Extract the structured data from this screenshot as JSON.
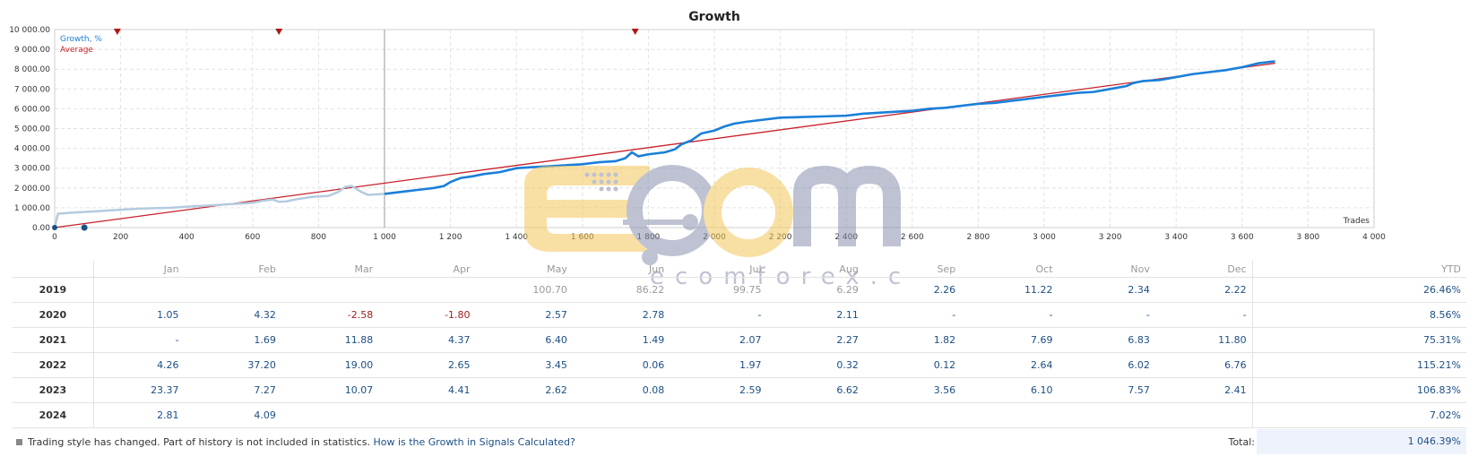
{
  "chart_data": {
    "type": "line",
    "title": "Growth",
    "xlabel": "Trades",
    "ylabel": "",
    "xlim": [
      0,
      4000
    ],
    "ylim": [
      0,
      10000
    ],
    "x_ticks": [
      "0",
      "200",
      "400",
      "600",
      "800",
      "1 000",
      "1 200",
      "1 400",
      "1 600",
      "1 800",
      "2 000",
      "2 200",
      "2 400",
      "2 600",
      "2 800",
      "3 000",
      "3 200",
      "3 400",
      "3 600",
      "3 800",
      "4 000"
    ],
    "y_ticks": [
      "0.00",
      "1 000.00",
      "2 000.00",
      "3 000.00",
      "4 000.00",
      "5 000.00",
      "6 000.00",
      "7 000.00",
      "8 000.00",
      "9 000.00",
      "10 000.00"
    ],
    "grid": true,
    "legend_position": "top-left",
    "series": [
      {
        "name": "Growth, %",
        "color": "#1a7fd9",
        "history_color": "#b3cbe0",
        "history_until": 1000,
        "points": [
          [
            0,
            0
          ],
          [
            10,
            700
          ],
          [
            50,
            750
          ],
          [
            100,
            800
          ],
          [
            150,
            850
          ],
          [
            200,
            900
          ],
          [
            250,
            950
          ],
          [
            300,
            980
          ],
          [
            350,
            1000
          ],
          [
            400,
            1050
          ],
          [
            450,
            1100
          ],
          [
            500,
            1150
          ],
          [
            550,
            1200
          ],
          [
            600,
            1250
          ],
          [
            630,
            1350
          ],
          [
            660,
            1420
          ],
          [
            680,
            1300
          ],
          [
            700,
            1320
          ],
          [
            740,
            1450
          ],
          [
            780,
            1550
          ],
          [
            830,
            1600
          ],
          [
            860,
            1800
          ],
          [
            880,
            2050
          ],
          [
            900,
            2100
          ],
          [
            930,
            1800
          ],
          [
            950,
            1650
          ],
          [
            1000,
            1700
          ],
          [
            1050,
            1800
          ],
          [
            1100,
            1900
          ],
          [
            1150,
            2000
          ],
          [
            1180,
            2100
          ],
          [
            1200,
            2300
          ],
          [
            1230,
            2500
          ],
          [
            1270,
            2600
          ],
          [
            1300,
            2700
          ],
          [
            1350,
            2800
          ],
          [
            1400,
            3000
          ],
          [
            1450,
            3050
          ],
          [
            1500,
            3100
          ],
          [
            1550,
            3150
          ],
          [
            1600,
            3200
          ],
          [
            1650,
            3300
          ],
          [
            1700,
            3350
          ],
          [
            1730,
            3500
          ],
          [
            1750,
            3800
          ],
          [
            1770,
            3600
          ],
          [
            1800,
            3700
          ],
          [
            1850,
            3800
          ],
          [
            1880,
            3950
          ],
          [
            1900,
            4200
          ],
          [
            1930,
            4400
          ],
          [
            1960,
            4750
          ],
          [
            2000,
            4900
          ],
          [
            2030,
            5100
          ],
          [
            2060,
            5250
          ],
          [
            2100,
            5350
          ],
          [
            2200,
            5550
          ],
          [
            2300,
            5600
          ],
          [
            2400,
            5650
          ],
          [
            2450,
            5750
          ],
          [
            2500,
            5800
          ],
          [
            2550,
            5850
          ],
          [
            2600,
            5900
          ],
          [
            2650,
            6000
          ],
          [
            2700,
            6050
          ],
          [
            2750,
            6150
          ],
          [
            2800,
            6250
          ],
          [
            2850,
            6300
          ],
          [
            2900,
            6400
          ],
          [
            2950,
            6500
          ],
          [
            3000,
            6600
          ],
          [
            3050,
            6700
          ],
          [
            3100,
            6800
          ],
          [
            3150,
            6850
          ],
          [
            3200,
            7000
          ],
          [
            3250,
            7150
          ],
          [
            3270,
            7300
          ],
          [
            3300,
            7400
          ],
          [
            3350,
            7450
          ],
          [
            3400,
            7600
          ],
          [
            3450,
            7750
          ],
          [
            3500,
            7850
          ],
          [
            3550,
            7950
          ],
          [
            3600,
            8100
          ],
          [
            3650,
            8300
          ],
          [
            3700,
            8400
          ]
        ]
      },
      {
        "name": "Average",
        "color": "#c8202a",
        "points": [
          [
            0,
            0
          ],
          [
            3700,
            8300
          ]
        ]
      }
    ],
    "markers": [
      [
        190,
        10000
      ],
      [
        680,
        10000
      ],
      [
        1760,
        10000
      ]
    ],
    "start_marker": [
      90,
      0
    ]
  },
  "table": {
    "headers": [
      "",
      "Jan",
      "Feb",
      "Mar",
      "Apr",
      "May",
      "Jun",
      "Jul",
      "Aug",
      "Sep",
      "Oct",
      "Nov",
      "Dec",
      "YTD"
    ],
    "rows": [
      {
        "year": "2019",
        "values": [
          "",
          "",
          "",
          "",
          "100.70",
          "86.22",
          "99.75",
          "6.29",
          "2.26",
          "11.22",
          "2.34",
          "2.22"
        ],
        "ytd": "26.46%"
      },
      {
        "year": "2020",
        "values": [
          "1.05",
          "4.32",
          "-2.58",
          "-1.80",
          "2.57",
          "2.78",
          "-",
          "2.11",
          "-",
          "-",
          "-",
          "-"
        ],
        "ytd": "8.56%"
      },
      {
        "year": "2021",
        "values": [
          "-",
          "1.69",
          "11.88",
          "4.37",
          "6.40",
          "1.49",
          "2.07",
          "2.27",
          "1.82",
          "7.69",
          "6.83",
          "11.80"
        ],
        "ytd": "75.31%"
      },
      {
        "year": "2022",
        "values": [
          "4.26",
          "37.20",
          "19.00",
          "2.65",
          "3.45",
          "0.06",
          "1.97",
          "0.32",
          "0.12",
          "2.64",
          "6.02",
          "6.76"
        ],
        "ytd": "115.21%"
      },
      {
        "year": "2023",
        "values": [
          "23.37",
          "7.27",
          "10.07",
          "4.41",
          "2.62",
          "0.08",
          "2.59",
          "6.62",
          "3.56",
          "6.10",
          "7.57",
          "2.41"
        ],
        "ytd": "106.83%"
      },
      {
        "year": "2024",
        "values": [
          "2.81",
          "4.09",
          "",
          "",
          "",
          "",
          "",
          "",
          "",
          "",
          "",
          ""
        ],
        "ytd": "7.02%"
      }
    ]
  },
  "footer": {
    "note": "Trading style has changed. Part of history is not included in statistics.",
    "link": "How is the Growth in Signals Calculated?",
    "total_label": "Total:",
    "total_value": "1 046.39%"
  },
  "watermark": {
    "brand": "Ecom",
    "url": "ecomforex.com"
  }
}
